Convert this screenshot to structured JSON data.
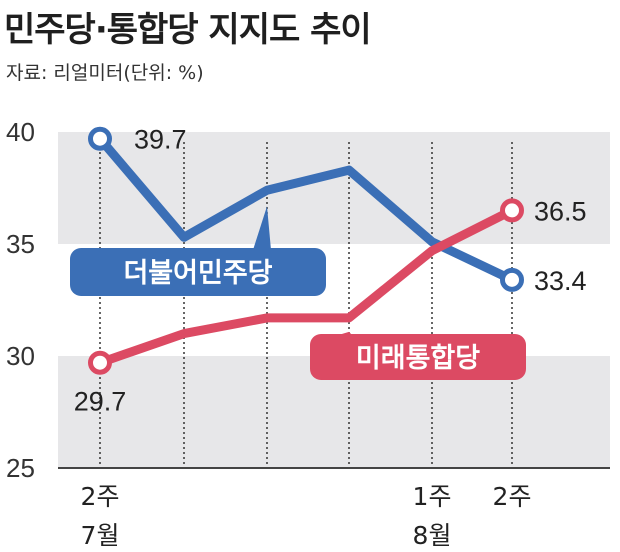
{
  "title": "민주당·통합당 지지도 추이",
  "source": "자료: 리얼미터(단위: %)",
  "colors": {
    "democratic": "#3b6fb6",
    "united": "#dc4a63",
    "band": "#e7e7e9",
    "axis": "#444444"
  },
  "chart_data": {
    "type": "line",
    "ylim": [
      25,
      40
    ],
    "yticks": [
      "40",
      "35",
      "30",
      "25"
    ],
    "grid": true,
    "x_labels": [
      {
        "index": 0,
        "week": "2주",
        "month": "7월"
      },
      {
        "index": 4,
        "week": "1주",
        "month": "8월"
      },
      {
        "index": 5,
        "week": "2주",
        "month": ""
      }
    ],
    "series": [
      {
        "name": "더불어민주당",
        "color": "#3b6fb6",
        "values": [
          39.7,
          35.3,
          37.4,
          38.3,
          35.1,
          33.4
        ],
        "end_labels": [
          "39.7",
          "33.4"
        ],
        "legend_anchor_index": 2
      },
      {
        "name": "미래통합당",
        "color": "#dc4a63",
        "values": [
          29.7,
          31.0,
          31.7,
          31.7,
          34.7,
          36.5
        ],
        "end_labels": [
          "29.7",
          "36.5"
        ],
        "legend_anchor_index": 3
      }
    ]
  }
}
